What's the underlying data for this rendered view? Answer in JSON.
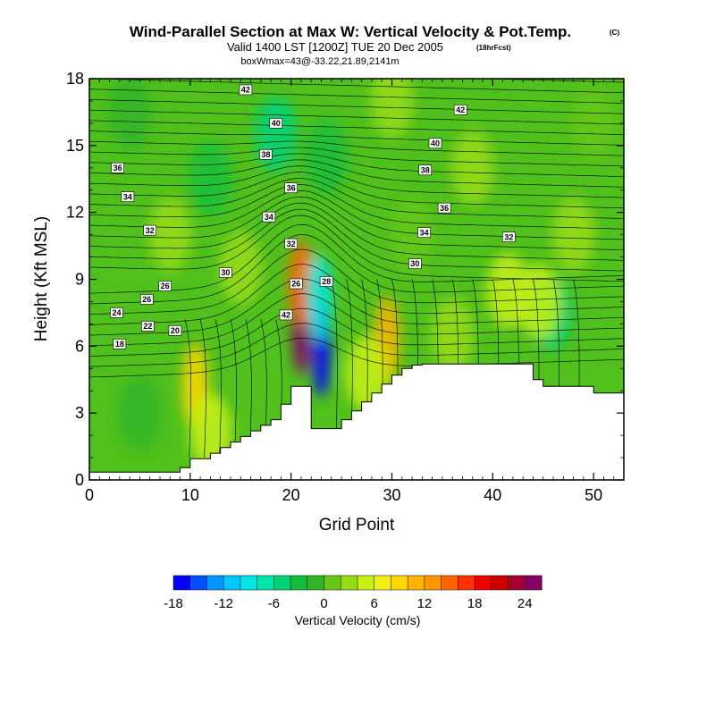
{
  "header": {
    "title": "Wind-Parallel Section at Max W: Vertical Velocity & Pot.Temp.",
    "title_mark": "(C)",
    "valid": "Valid 1400 LST [1200Z] TUE 20 Dec 2005",
    "fcst": "(18hrFcst)",
    "box": "boxWmax=43@-33.22,21.89,2141m"
  },
  "chart_data": {
    "type": "heatmap",
    "xlabel": "Grid Point",
    "ylabel": "Height (Kft MSL)",
    "xlim": [
      0,
      53
    ],
    "ylim": [
      0,
      18
    ],
    "xticks": [
      0,
      10,
      20,
      30,
      40,
      50
    ],
    "yticks": [
      0,
      3,
      6,
      9,
      12,
      15,
      18
    ],
    "terrain": {
      "x": [
        0,
        9,
        9,
        10,
        10,
        12,
        12,
        13,
        13,
        14,
        14,
        15,
        15,
        16,
        16,
        17,
        17,
        18,
        18,
        19,
        19,
        20,
        20,
        22,
        22,
        25,
        25,
        26,
        26,
        27,
        27,
        28,
        28,
        29,
        29,
        30,
        30,
        31,
        31,
        32,
        32,
        33,
        33,
        40,
        40,
        44,
        44,
        45,
        45,
        46,
        46,
        50,
        50,
        53
      ],
      "y": [
        0.35,
        0.35,
        0.55,
        0.55,
        0.95,
        0.95,
        1.2,
        1.2,
        1.45,
        1.45,
        1.7,
        1.7,
        1.95,
        1.95,
        2.2,
        2.2,
        2.45,
        2.45,
        2.7,
        2.7,
        3.4,
        3.4,
        4.2,
        4.2,
        2.3,
        2.3,
        2.7,
        2.7,
        3.1,
        3.1,
        3.5,
        3.5,
        3.9,
        3.9,
        4.3,
        4.3,
        4.7,
        4.7,
        5.0,
        5.0,
        5.15,
        5.15,
        5.2,
        5.2,
        5.2,
        5.2,
        4.5,
        4.5,
        4.2,
        4.2,
        4.2,
        4.2,
        3.9,
        3.9
      ]
    },
    "w_features": [
      {
        "x": 21,
        "y": 6.8,
        "value": 24
      },
      {
        "x": 21,
        "y": 8.8,
        "value": 14
      },
      {
        "x": 23,
        "y": 5.8,
        "value": -18
      },
      {
        "x": 22.8,
        "y": 8.2,
        "value": -10
      },
      {
        "x": 10.5,
        "y": 4.2,
        "value": 9
      },
      {
        "x": 12,
        "y": 2.2,
        "value": 5
      },
      {
        "x": 29.5,
        "y": 6.3,
        "value": 10
      },
      {
        "x": 27.5,
        "y": 4.8,
        "value": 4
      },
      {
        "x": 45.8,
        "y": 7.5,
        "value": -6
      },
      {
        "x": 44.6,
        "y": 8.0,
        "value": 4
      },
      {
        "x": 41.5,
        "y": 8.5,
        "value": 5
      },
      {
        "x": 36,
        "y": 6.5,
        "value": 3
      },
      {
        "x": 18.5,
        "y": 15.5,
        "value": -5
      },
      {
        "x": 12,
        "y": 13.5,
        "value": -4
      },
      {
        "x": 23.5,
        "y": 14.5,
        "value": -3
      },
      {
        "x": 15,
        "y": 9.5,
        "value": 3
      },
      {
        "x": 8,
        "y": 11,
        "value": 2
      },
      {
        "x": 38,
        "y": 14,
        "value": 2
      },
      {
        "x": 32,
        "y": 11,
        "value": 1
      },
      {
        "x": 48,
        "y": 11,
        "value": 2
      },
      {
        "x": 5,
        "y": 3,
        "value": -2
      },
      {
        "x": 50,
        "y": 16,
        "value": 1
      },
      {
        "x": 30,
        "y": 17,
        "value": 2
      },
      {
        "x": 4,
        "y": 16.5,
        "value": -1
      }
    ],
    "theta_contour_labels": [
      {
        "x": 3.0,
        "y": 6.1,
        "text": "18"
      },
      {
        "x": 5.8,
        "y": 6.9,
        "text": "22"
      },
      {
        "x": 8.5,
        "y": 6.7,
        "text": "20"
      },
      {
        "x": 2.7,
        "y": 7.5,
        "text": "24"
      },
      {
        "x": 5.7,
        "y": 8.1,
        "text": "26"
      },
      {
        "x": 7.5,
        "y": 8.7,
        "text": "26"
      },
      {
        "x": 13.5,
        "y": 9.3,
        "text": "30"
      },
      {
        "x": 19.5,
        "y": 7.4,
        "text": "42"
      },
      {
        "x": 20.5,
        "y": 8.8,
        "text": "26"
      },
      {
        "x": 23.5,
        "y": 8.9,
        "text": "28"
      },
      {
        "x": 6.0,
        "y": 11.2,
        "text": "32"
      },
      {
        "x": 3.8,
        "y": 12.7,
        "text": "34"
      },
      {
        "x": 2.8,
        "y": 14.0,
        "text": "36"
      },
      {
        "x": 17.8,
        "y": 11.8,
        "text": "34"
      },
      {
        "x": 20.0,
        "y": 10.6,
        "text": "32"
      },
      {
        "x": 20.0,
        "y": 13.1,
        "text": "36"
      },
      {
        "x": 17.5,
        "y": 14.6,
        "text": "38"
      },
      {
        "x": 18.5,
        "y": 16.0,
        "text": "40"
      },
      {
        "x": 15.5,
        "y": 17.5,
        "text": "42"
      },
      {
        "x": 32.3,
        "y": 9.7,
        "text": "30"
      },
      {
        "x": 33.2,
        "y": 11.1,
        "text": "34"
      },
      {
        "x": 35.2,
        "y": 12.2,
        "text": "36"
      },
      {
        "x": 33.3,
        "y": 13.9,
        "text": "38"
      },
      {
        "x": 34.3,
        "y": 15.1,
        "text": "40"
      },
      {
        "x": 36.8,
        "y": 16.6,
        "text": "42"
      },
      {
        "x": 41.6,
        "y": 10.9,
        "text": "32"
      }
    ],
    "colorbar": {
      "label": "Vertical Velocity (cm/s)",
      "levels": [
        -18,
        -16,
        -14,
        -12,
        -10,
        -8,
        -6,
        -4,
        -2,
        0,
        2,
        4,
        6,
        8,
        10,
        12,
        14,
        16,
        18,
        20,
        22,
        24,
        26
      ],
      "tick_values": [
        -18,
        -12,
        -6,
        0,
        6,
        12,
        18,
        24
      ],
      "tick_labels": [
        "-18",
        "-12",
        "-6",
        "0",
        "6",
        "12",
        "18",
        "24"
      ],
      "colors": [
        "#0000ff",
        "#0050ff",
        "#0096ff",
        "#00c8ff",
        "#00e6e6",
        "#00e6aa",
        "#00d278",
        "#14be3c",
        "#32b428",
        "#64c814",
        "#96dc14",
        "#c8f014",
        "#f0f014",
        "#ffd700",
        "#ffb400",
        "#ff9600",
        "#ff6400",
        "#ff3200",
        "#f00000",
        "#cd0000",
        "#a50032",
        "#870064"
      ]
    }
  }
}
